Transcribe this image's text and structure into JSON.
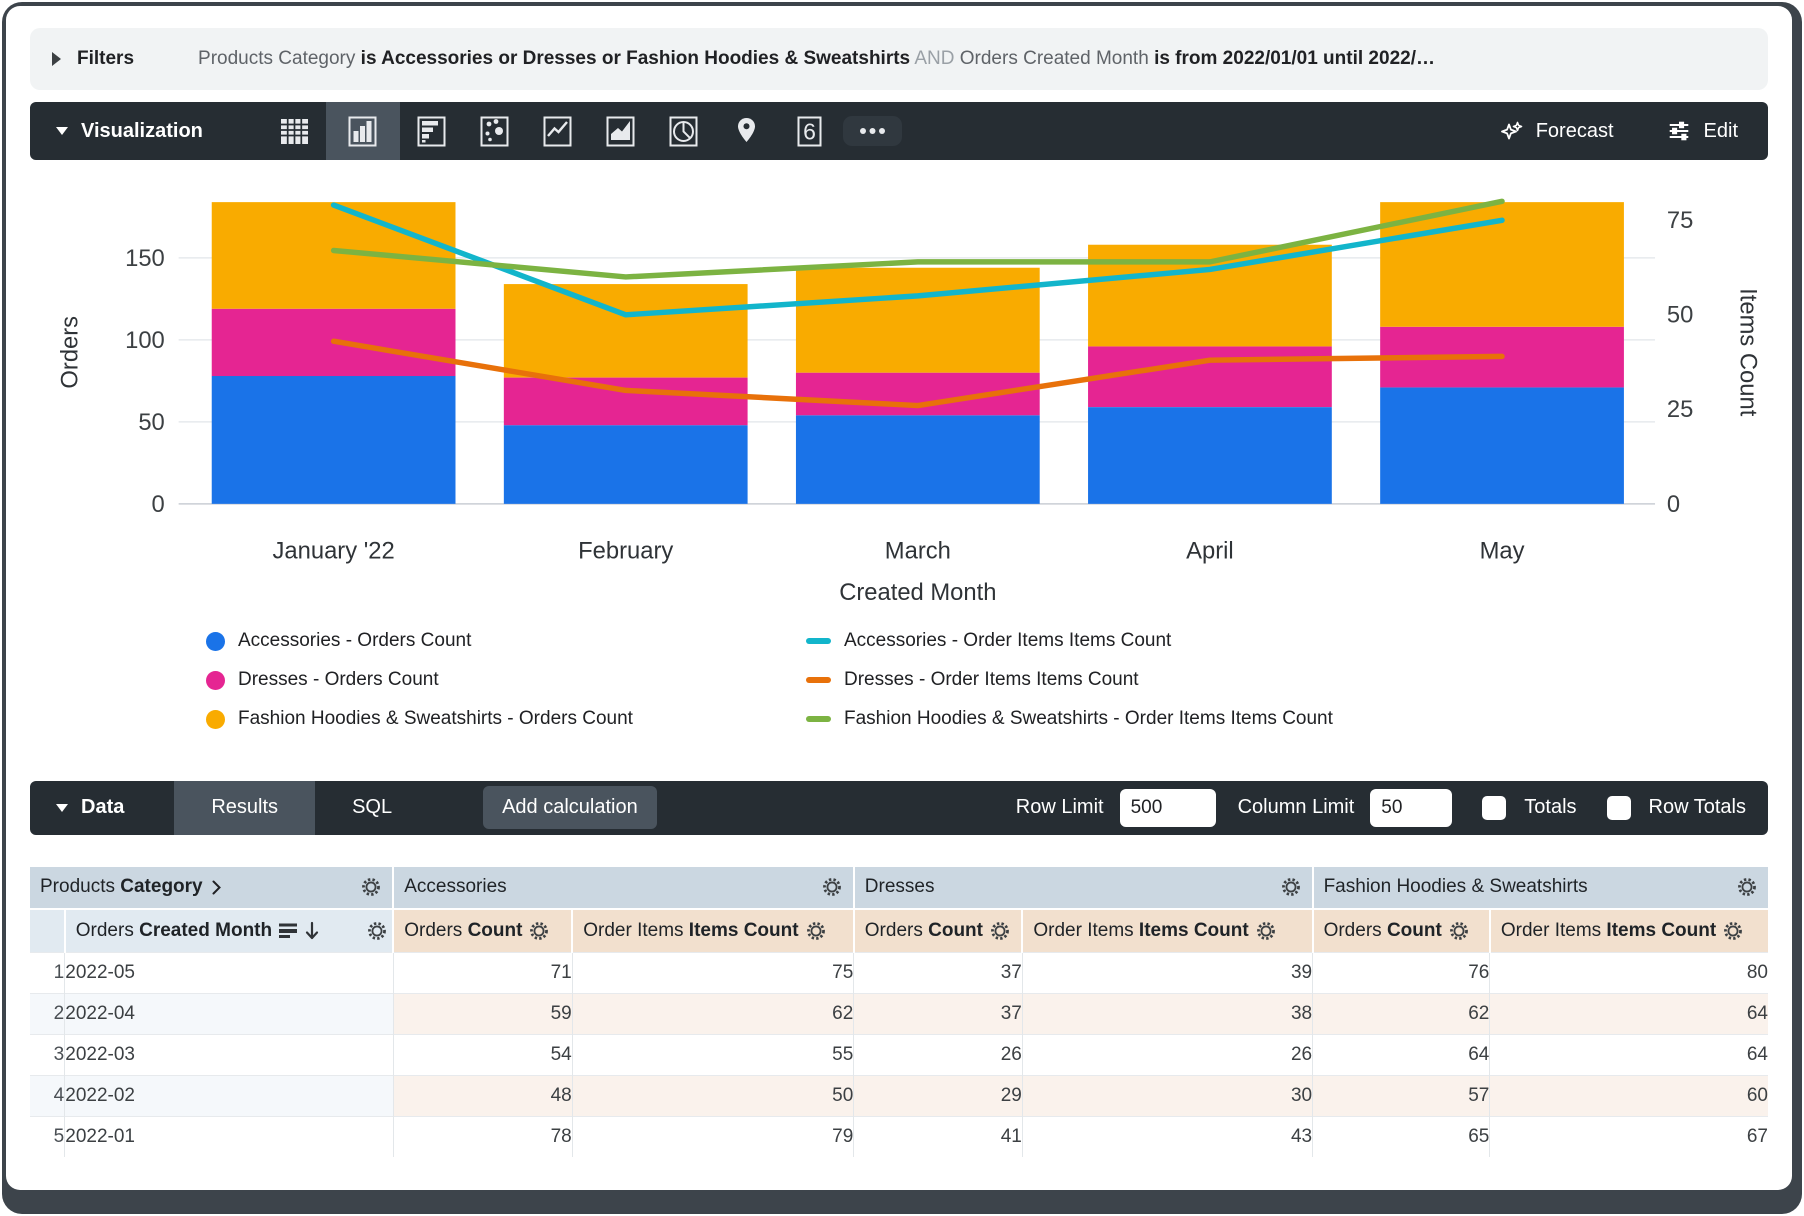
{
  "filters": {
    "label": "Filters",
    "segments": [
      {
        "text": "Products Category ",
        "style": "dim"
      },
      {
        "text": "is Accessories or Dresses or Fashion Hoodies & Sweatshirts",
        "style": "bold"
      },
      {
        "text": " AND ",
        "style": "faint"
      },
      {
        "text": "Orders Created Month ",
        "style": "dim"
      },
      {
        "text": "is from 2022/01/01 until 2022/…",
        "style": "bold"
      }
    ]
  },
  "visualization": {
    "label": "Visualization",
    "icons": [
      {
        "name": "data-table-icon",
        "selected": false
      },
      {
        "name": "column-chart-icon",
        "selected": true
      },
      {
        "name": "bar-chart-icon",
        "selected": false
      },
      {
        "name": "scatter-chart-icon",
        "selected": false
      },
      {
        "name": "line-chart-icon",
        "selected": false
      },
      {
        "name": "area-chart-icon",
        "selected": false
      },
      {
        "name": "pie-chart-icon",
        "selected": false
      },
      {
        "name": "map-chart-icon",
        "selected": false
      },
      {
        "name": "single-value-icon",
        "selected": false
      },
      {
        "name": "more-options-icon",
        "selected": false
      }
    ],
    "single_value_glyph": "6",
    "forecast_label": "Forecast",
    "edit_label": "Edit"
  },
  "chart_data": {
    "type": "bar",
    "subtype": "stacked-columns-with-lines",
    "categories": [
      "January '22",
      "February",
      "March",
      "April",
      "May"
    ],
    "series": [
      {
        "name": "Accessories - Orders Count",
        "kind": "bar",
        "axis": "left",
        "color": "#1A73E8",
        "values": [
          78,
          48,
          54,
          59,
          71
        ]
      },
      {
        "name": "Dresses - Orders Count",
        "kind": "bar",
        "axis": "left",
        "color": "#E52592",
        "values": [
          41,
          29,
          26,
          37,
          37
        ]
      },
      {
        "name": "Fashion Hoodies & Sweatshirts - Orders Count",
        "kind": "bar",
        "axis": "left",
        "color": "#F9AB00",
        "values": [
          65,
          57,
          64,
          62,
          76
        ]
      },
      {
        "name": "Accessories - Order Items Items Count",
        "kind": "line",
        "axis": "right",
        "color": "#12B5CB",
        "values": [
          79,
          50,
          55,
          62,
          75
        ]
      },
      {
        "name": "Dresses - Order Items Items Count",
        "kind": "line",
        "axis": "right",
        "color": "#E8710A",
        "values": [
          43,
          30,
          26,
          38,
          39
        ]
      },
      {
        "name": "Fashion Hoodies & Sweatshirts - Order Items Items Count",
        "kind": "line",
        "axis": "right",
        "color": "#7CB342",
        "values": [
          67,
          60,
          64,
          64,
          80
        ]
      }
    ],
    "title": "",
    "xlabel": "Created Month",
    "ylabel_left": "Orders",
    "ylabel_right": "Items Count",
    "left_ticks": [
      0,
      50,
      100,
      150
    ],
    "right_ticks": [
      0,
      25,
      50,
      75
    ],
    "ylim_left": [
      0,
      190
    ],
    "ylim_right": [
      0,
      82
    ],
    "grid": "horizontal",
    "legend_position": "bottom"
  },
  "data_section": {
    "label": "Data",
    "tabs": [
      {
        "label": "Results",
        "active": true
      },
      {
        "label": "SQL",
        "active": false
      }
    ],
    "add_calculation_label": "Add calculation",
    "row_limit_label": "Row Limit",
    "row_limit_value": "500",
    "column_limit_label": "Column Limit",
    "column_limit_value": "50",
    "totals_label": "Totals",
    "totals_checked": false,
    "row_totals_label": "Row Totals",
    "row_totals_checked": false
  },
  "table": {
    "dimension_group": {
      "plain": "Products ",
      "bold": "Category"
    },
    "measure_groups": [
      "Accessories",
      "Dresses",
      "Fashion Hoodies & Sweatshirts"
    ],
    "dimension_subheader": {
      "plain": "Orders ",
      "bold": "Created Month"
    },
    "measure_subheaders": [
      {
        "plain": "Orders ",
        "bold": "Count"
      },
      {
        "plain": "Order Items ",
        "bold": "Items Count"
      },
      {
        "plain": "Orders ",
        "bold": "Count"
      },
      {
        "plain": "Order Items ",
        "bold": "Items Count"
      },
      {
        "plain": "Orders ",
        "bold": "Count"
      },
      {
        "plain": "Order Items ",
        "bold": "Items Count"
      }
    ],
    "rows": [
      {
        "index": "1",
        "month": "2022-05",
        "values": [
          71,
          75,
          37,
          39,
          76,
          80
        ]
      },
      {
        "index": "2",
        "month": "2022-04",
        "values": [
          59,
          62,
          37,
          38,
          62,
          64
        ]
      },
      {
        "index": "3",
        "month": "2022-03",
        "values": [
          54,
          55,
          26,
          26,
          64,
          64
        ]
      },
      {
        "index": "4",
        "month": "2022-02",
        "values": [
          48,
          50,
          29,
          30,
          57,
          60
        ]
      },
      {
        "index": "5",
        "month": "2022-01",
        "values": [
          78,
          79,
          41,
          43,
          65,
          67
        ]
      }
    ]
  },
  "colors": {
    "accent_blue": "#1A73E8",
    "magenta": "#E52592",
    "amber": "#F9AB00",
    "cyan": "#12B5CB",
    "orange": "#E8710A",
    "green": "#7CB342",
    "dark_bar": "#262D33",
    "dark_tile": "#4A545E",
    "header_group_bg": "#CBD7E1",
    "header_dim_bg": "#E1EAF1",
    "header_measure_bg": "#F2E0CE"
  }
}
